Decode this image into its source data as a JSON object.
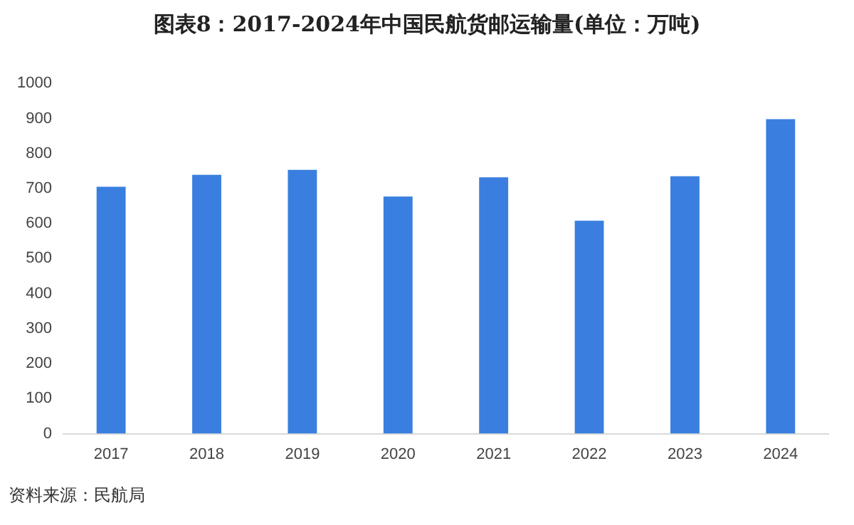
{
  "chart_data": {
    "type": "bar",
    "title": "图表8：2017-2024年中国民航货邮运输量(单位：万吨)",
    "categories": [
      "2017",
      "2018",
      "2019",
      "2020",
      "2021",
      "2022",
      "2023",
      "2024"
    ],
    "values": [
      705,
      739,
      753,
      677,
      732,
      608,
      735,
      898
    ],
    "color": "#3a7fdf",
    "ylim": [
      0,
      1000
    ],
    "yticks": [
      0,
      100,
      200,
      300,
      400,
      500,
      600,
      700,
      800,
      900,
      1000
    ],
    "grid": false,
    "legend": false,
    "annotations": [
      "资料来源：民航局"
    ]
  }
}
